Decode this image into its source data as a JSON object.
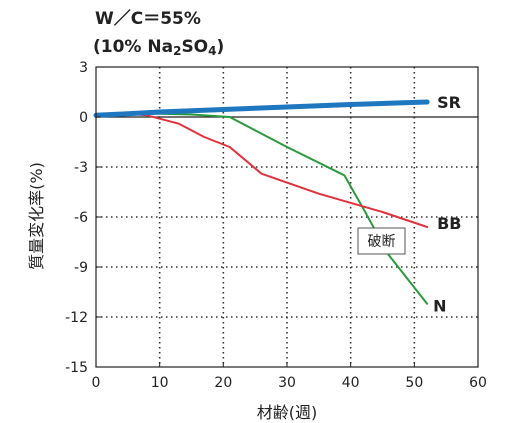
{
  "chart_data": {
    "type": "line",
    "title_line1": "W／C＝55%",
    "title_line2_pre": "(10% Na",
    "title_line2_sub": "2",
    "title_line2_mid": "SO",
    "title_line2_sub2": "4",
    "title_line2_post": ")",
    "xlabel": "材齢(週)",
    "ylabel": "質量変化率(%)",
    "xlim": [
      0,
      60
    ],
    "ylim": [
      -15,
      3
    ],
    "x_ticks": [
      0,
      10,
      20,
      30,
      40,
      50,
      60
    ],
    "y_ticks": [
      3,
      0,
      -3,
      -6,
      -9,
      -12,
      -15
    ],
    "grid": "dotted",
    "series": [
      {
        "name": "SR",
        "color": "#1f77c0",
        "width": 5,
        "x": [
          0,
          5,
          10,
          20,
          30,
          40,
          52
        ],
        "y": [
          0.1,
          0.2,
          0.3,
          0.45,
          0.6,
          0.75,
          0.9
        ]
      },
      {
        "name": "BB",
        "color": "#e0323c",
        "width": 2,
        "x": [
          0,
          5,
          8,
          13,
          17,
          21,
          26,
          35,
          45,
          52
        ],
        "y": [
          0.1,
          0.2,
          0.1,
          -0.4,
          -1.2,
          -1.8,
          -3.4,
          -4.6,
          -5.7,
          -6.6
        ]
      },
      {
        "name": "N",
        "color": "#2a9a3c",
        "width": 2,
        "x": [
          0,
          5,
          10,
          15,
          21,
          30,
          39,
          42,
          46,
          52
        ],
        "y": [
          0.1,
          0.2,
          0.2,
          0.15,
          0.0,
          -1.8,
          -3.5,
          -5.5,
          -8.3,
          -11.2
        ]
      }
    ],
    "annotation": "破断"
  }
}
